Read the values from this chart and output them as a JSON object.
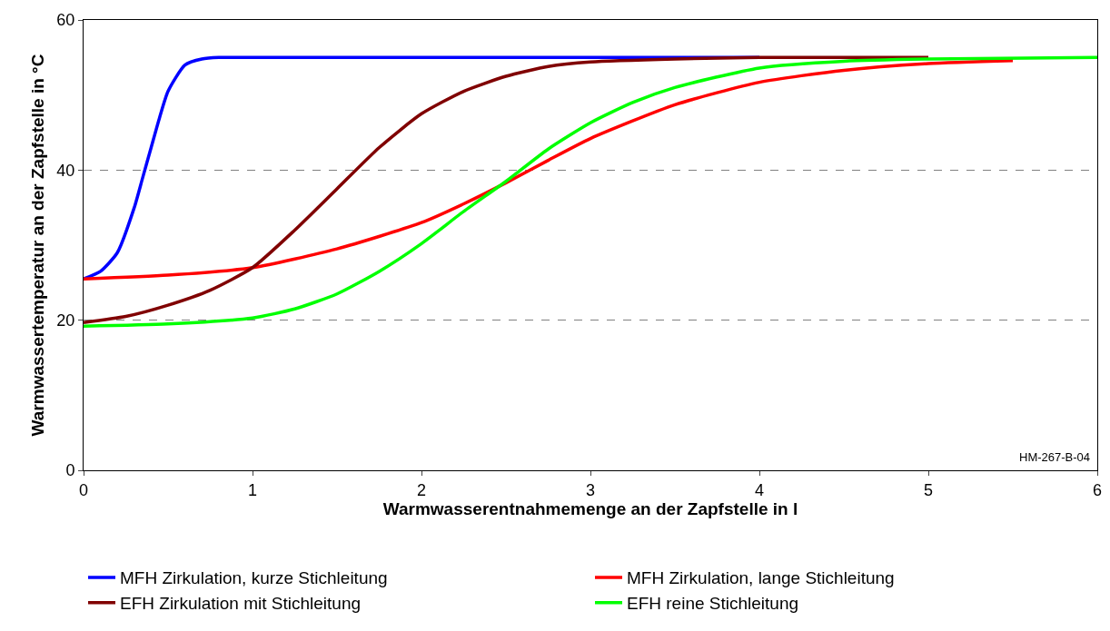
{
  "chart_data": {
    "type": "line",
    "xlabel": "Warmwasserentnahmemenge an der Zapfstelle in l",
    "ylabel": "Warmwassertemperatur an der Zapfstelle in °C",
    "xlim": [
      0,
      6
    ],
    "xticks": [
      0,
      1,
      2,
      3,
      4,
      5,
      6
    ],
    "ylim": [
      0,
      60
    ],
    "yticks": [
      0,
      20,
      40,
      60
    ],
    "grid": "y",
    "legend": "bottom",
    "line_style": "solid",
    "marker": "none",
    "annotations": [
      "HM-267-B-04"
    ],
    "series": [
      {
        "name": "MFH Zirkulation, kurze Stichleitung",
        "color": "#0000ff",
        "x": [
          0,
          0.1,
          0.2,
          0.3,
          0.35,
          0.4,
          0.45,
          0.5,
          0.6,
          0.7,
          0.8,
          1,
          2,
          3,
          4
        ],
        "values": [
          25.5,
          26.5,
          29,
          35,
          39,
          43,
          47,
          50.5,
          54,
          54.8,
          55,
          55,
          55,
          55,
          55
        ]
      },
      {
        "name": "MFH Zirkulation, lange Stichleitung",
        "color": "#ff0000",
        "x": [
          0,
          0.5,
          1,
          1.5,
          2,
          2.25,
          2.5,
          2.75,
          3,
          3.5,
          4,
          4.5,
          5,
          5.5
        ],
        "values": [
          25.5,
          26,
          27,
          29.5,
          33,
          35.5,
          38.3,
          41.3,
          44.2,
          48.7,
          51.7,
          53.3,
          54.2,
          54.6
        ]
      },
      {
        "name": "EFH Zirkulation mit Stichleitung",
        "color": "#800000",
        "x": [
          0,
          0.25,
          0.5,
          0.75,
          1,
          1.25,
          1.5,
          1.75,
          2,
          2.25,
          2.5,
          2.75,
          3,
          3.5,
          4,
          5
        ],
        "values": [
          19.7,
          20.5,
          22,
          24,
          27,
          32,
          37.5,
          43,
          47.5,
          50.5,
          52.5,
          53.8,
          54.4,
          54.8,
          55,
          55
        ]
      },
      {
        "name": "EFH reine Stichleitung",
        "color": "#00ff00",
        "x": [
          0,
          0.5,
          1,
          1.25,
          1.5,
          1.75,
          2,
          2.25,
          2.5,
          2.75,
          3,
          3.25,
          3.5,
          4,
          4.5,
          5,
          6
        ],
        "values": [
          19.2,
          19.5,
          20.3,
          21.5,
          23.5,
          26.5,
          30.2,
          34.5,
          38.5,
          42.8,
          46.3,
          49,
          51,
          53.6,
          54.5,
          54.8,
          55
        ]
      }
    ]
  }
}
